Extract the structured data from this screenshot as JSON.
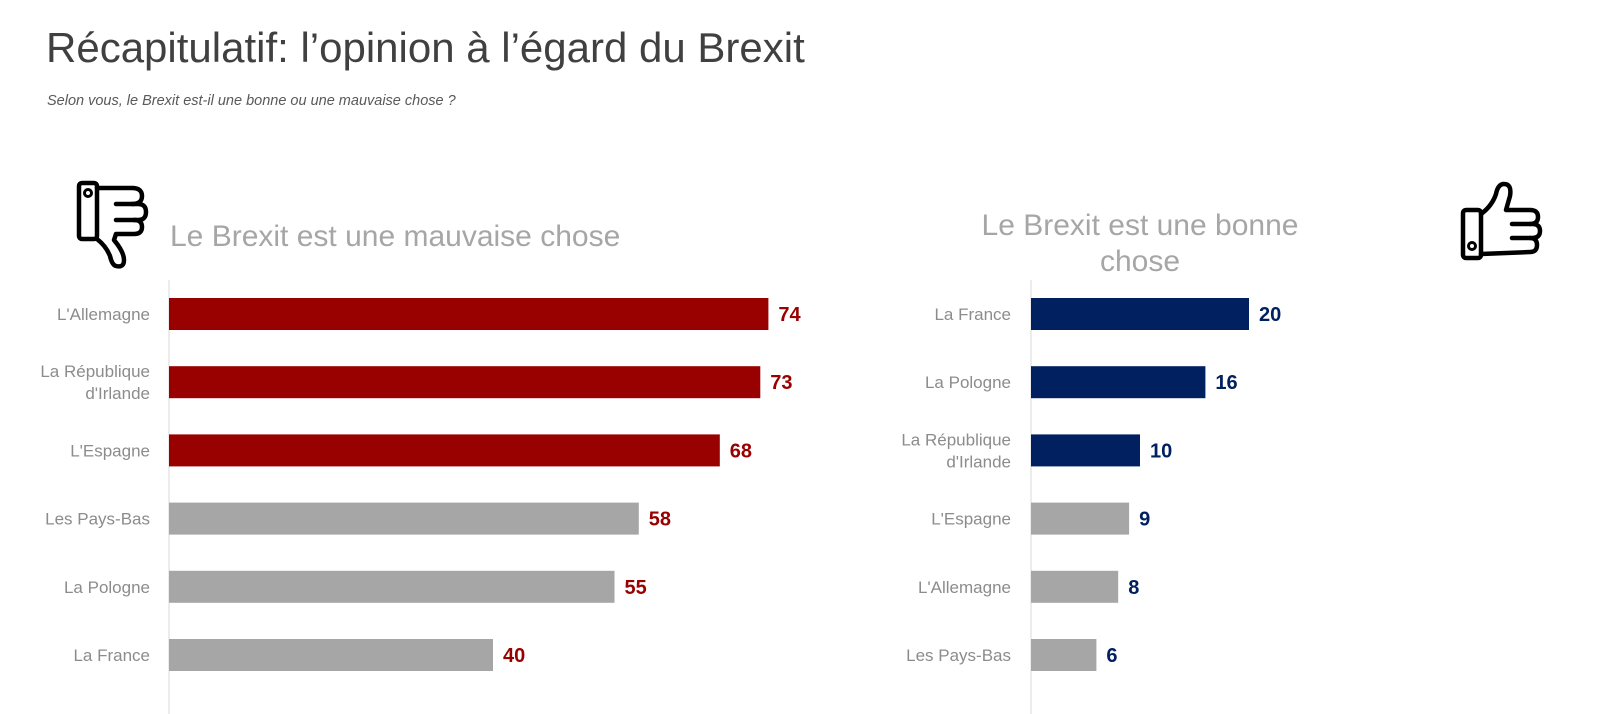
{
  "header": {
    "title": "Récapitulatif: l’opinion à l’égard du Brexit",
    "subtitle": "Selon vous, le Brexit est-il une bonne ou une mauvaise chose ?"
  },
  "icons": {
    "left": "thumbs-down-icon",
    "right": "thumbs-up-icon"
  },
  "colors": {
    "red": "#990000",
    "navy": "#002060",
    "grey": "#a6a6a6",
    "label_grey": "#8c8c8c"
  },
  "chart_data": [
    {
      "type": "bar",
      "orientation": "horizontal",
      "title": "Le Brexit est une mauvaise chose",
      "categories": [
        "L'Allemagne",
        "La République d'Irlande",
        "L'Espagne",
        "Les Pays-Bas",
        "La Pologne",
        "La France"
      ],
      "category_lines": [
        [
          "L'Allemagne"
        ],
        [
          "La République",
          "d'Irlande"
        ],
        [
          "L'Espagne"
        ],
        [
          "Les Pays-Bas"
        ],
        [
          "La Pologne"
        ],
        [
          "La France"
        ]
      ],
      "values": [
        74,
        73,
        68,
        58,
        55,
        40
      ],
      "bar_colors": [
        "#990000",
        "#990000",
        "#990000",
        "#a6a6a6",
        "#a6a6a6",
        "#a6a6a6"
      ],
      "value_label_color": "#990000"
    },
    {
      "type": "bar",
      "orientation": "horizontal",
      "title": "Le Brexit est une bonne chose",
      "categories": [
        "La France",
        "La Pologne",
        "La République d'Irlande",
        "L'Espagne",
        "L'Allemagne",
        "Les Pays-Bas"
      ],
      "category_lines": [
        [
          "La France"
        ],
        [
          "La Pologne"
        ],
        [
          "La République",
          "d'Irlande"
        ],
        [
          "L'Espagne"
        ],
        [
          "L'Allemagne"
        ],
        [
          "Les Pays-Bas"
        ]
      ],
      "values": [
        20,
        16,
        10,
        9,
        8,
        6
      ],
      "bar_colors": [
        "#002060",
        "#002060",
        "#002060",
        "#a6a6a6",
        "#a6a6a6",
        "#a6a6a6"
      ],
      "value_label_color": "#002060"
    }
  ]
}
